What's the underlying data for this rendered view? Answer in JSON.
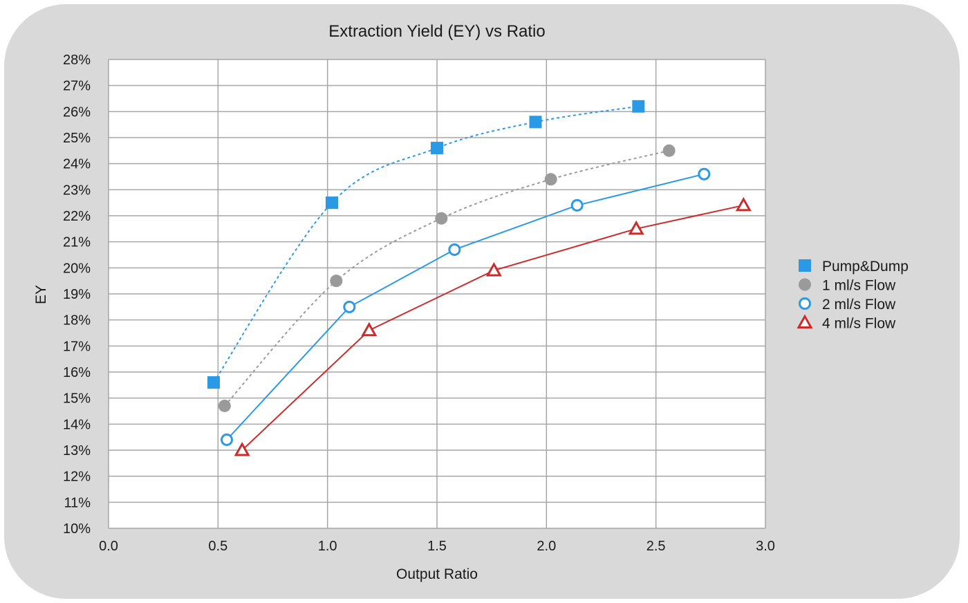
{
  "chart_data": {
    "type": "line",
    "title": "Extraction Yield (EY) vs Ratio",
    "xlabel": "Output Ratio",
    "ylabel": "EY",
    "xlim": [
      0.0,
      3.0
    ],
    "ylim": [
      10,
      28
    ],
    "x_ticks": [
      "0.0",
      "0.5",
      "1.0",
      "1.5",
      "2.0",
      "2.5",
      "3.0"
    ],
    "y_ticks": [
      "10%",
      "11%",
      "12%",
      "13%",
      "14%",
      "15%",
      "16%",
      "17%",
      "18%",
      "19%",
      "20%",
      "21%",
      "22%",
      "23%",
      "24%",
      "25%",
      "26%",
      "27%",
      "28%"
    ],
    "grid": true,
    "legend_position": "right",
    "series": [
      {
        "name": "Pump&Dump",
        "color": "#2a9ae6",
        "marker": "filled-square",
        "line": "dotted",
        "x": [
          0.48,
          1.02,
          1.5,
          1.95,
          2.42
        ],
        "y": [
          15.6,
          22.5,
          24.6,
          25.6,
          26.2
        ]
      },
      {
        "name": "1 ml/s Flow",
        "color": "#9a9a9a",
        "marker": "filled-circle",
        "line": "dotted",
        "x": [
          0.53,
          1.04,
          1.52,
          2.02,
          2.56
        ],
        "y": [
          14.7,
          19.5,
          21.9,
          23.4,
          24.5
        ]
      },
      {
        "name": "2 ml/s Flow",
        "color": "#2a9ae6",
        "marker": "open-circle",
        "line": "solid",
        "x": [
          0.54,
          1.1,
          1.58,
          2.14,
          2.72
        ],
        "y": [
          13.4,
          18.5,
          20.7,
          22.4,
          23.6
        ]
      },
      {
        "name": "4 ml/s Flow",
        "color": "#cc2b2b",
        "marker": "open-triangle",
        "line": "solid",
        "x": [
          0.61,
          1.19,
          1.76,
          2.41,
          2.9
        ],
        "y": [
          13.0,
          17.6,
          19.9,
          21.5,
          22.4
        ]
      }
    ]
  }
}
